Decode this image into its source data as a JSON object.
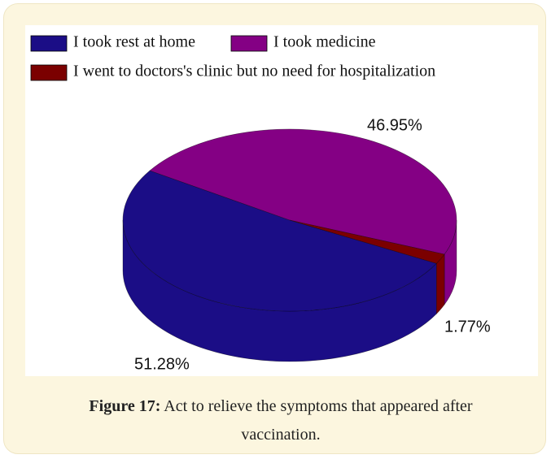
{
  "chart_data": {
    "type": "pie",
    "categories": [
      "I took rest at home",
      "I took medicine",
      "I went to doctors's clinic but no need for hospitalization"
    ],
    "values": [
      51.28,
      46.95,
      1.77
    ],
    "value_labels": [
      "51.28%",
      "46.95%",
      "1.77%"
    ],
    "colors": [
      "#1b0d86",
      "#840084",
      "#7b0000"
    ]
  },
  "caption": {
    "label": "Figure 17:",
    "text": "Act to relieve the symptoms that appeared after vaccination."
  }
}
